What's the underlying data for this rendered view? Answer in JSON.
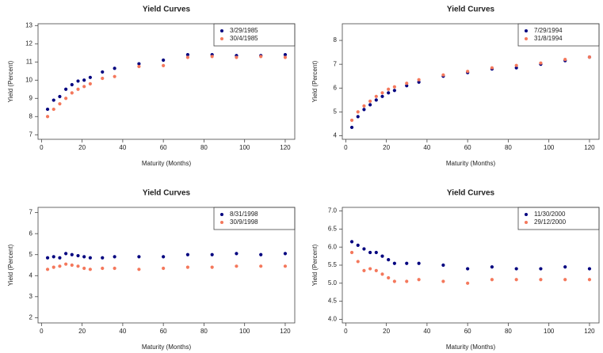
{
  "chart_data": [
    {
      "type": "scatter",
      "title": "Yield Curves",
      "x_label": "Maturity (Months)",
      "y_label": "Yield (Percent)",
      "x": [
        3,
        6,
        9,
        12,
        15,
        18,
        21,
        24,
        30,
        36,
        48,
        60,
        72,
        84,
        96,
        108,
        120
      ],
      "series": [
        {
          "name": "3/29/1985",
          "color": "#00007f",
          "values": [
            8.4,
            8.9,
            9.1,
            9.5,
            9.75,
            9.95,
            10.0,
            10.15,
            10.45,
            10.65,
            10.9,
            11.1,
            11.4,
            11.4,
            11.35,
            11.35,
            11.4
          ]
        },
        {
          "name": "30/4/1985",
          "color": "#f4785c",
          "values": [
            8.0,
            8.4,
            8.7,
            9.0,
            9.3,
            9.5,
            9.65,
            9.8,
            10.1,
            10.2,
            10.75,
            10.8,
            11.25,
            11.3,
            11.25,
            11.3,
            11.25
          ]
        }
      ],
      "xlim": [
        -1.7,
        124.7
      ],
      "xticks": [
        0,
        20,
        40,
        60,
        80,
        100,
        120
      ],
      "ylim": [
        6.75,
        13.1
      ],
      "yticks": [
        7,
        8,
        9,
        10,
        11,
        12,
        13
      ],
      "legend": "topright"
    },
    {
      "type": "scatter",
      "title": "Yield Curves",
      "x_label": "Maturity (Months)",
      "y_label": "Yield (Percent)",
      "x": [
        3,
        6,
        9,
        12,
        15,
        18,
        21,
        24,
        30,
        36,
        48,
        60,
        72,
        84,
        96,
        108,
        120
      ],
      "series": [
        {
          "name": "7/29/1994",
          "color": "#00007f",
          "values": [
            4.35,
            4.8,
            5.1,
            5.3,
            5.5,
            5.65,
            5.8,
            5.9,
            6.1,
            6.25,
            6.5,
            6.65,
            6.8,
            6.85,
            7.0,
            7.15,
            7.3
          ]
        },
        {
          "name": "31/8/1994",
          "color": "#f4785c",
          "values": [
            4.65,
            5.0,
            5.25,
            5.45,
            5.65,
            5.8,
            5.95,
            6.05,
            6.2,
            6.35,
            6.55,
            6.7,
            6.85,
            6.95,
            7.05,
            7.2,
            7.3
          ]
        }
      ],
      "xlim": [
        -1.7,
        124.7
      ],
      "xticks": [
        0,
        20,
        40,
        60,
        80,
        100,
        120
      ],
      "ylim": [
        3.85,
        8.7
      ],
      "yticks": [
        4,
        5,
        6,
        7,
        8
      ],
      "legend": "topright"
    },
    {
      "type": "scatter",
      "title": "Yield Curves",
      "x_label": "Maturity (Months)",
      "y_label": "Yield (Percent)",
      "x": [
        3,
        6,
        9,
        12,
        15,
        18,
        21,
        24,
        30,
        36,
        48,
        60,
        72,
        84,
        96,
        108,
        120
      ],
      "series": [
        {
          "name": "8/31/1998",
          "color": "#00007f",
          "values": [
            4.85,
            4.9,
            4.85,
            5.05,
            5.0,
            4.95,
            4.9,
            4.85,
            4.85,
            4.9,
            4.9,
            4.9,
            5.0,
            5.0,
            5.05,
            5.0,
            5.05
          ]
        },
        {
          "name": "30/9/1998",
          "color": "#f4785c",
          "values": [
            4.3,
            4.4,
            4.45,
            4.55,
            4.5,
            4.45,
            4.35,
            4.3,
            4.35,
            4.35,
            4.3,
            4.35,
            4.4,
            4.4,
            4.45,
            4.45,
            4.45
          ]
        }
      ],
      "xlim": [
        -1.7,
        124.7
      ],
      "xticks": [
        0,
        20,
        40,
        60,
        80,
        100,
        120
      ],
      "ylim": [
        1.75,
        7.25
      ],
      "yticks": [
        2,
        3,
        4,
        5,
        6,
        7
      ],
      "legend": "topright"
    },
    {
      "type": "scatter",
      "title": "Yield Curves",
      "x_label": "Maturity (Months)",
      "y_label": "Yield (Percent)",
      "x": [
        3,
        6,
        9,
        12,
        15,
        18,
        21,
        24,
        30,
        36,
        48,
        60,
        72,
        84,
        96,
        108,
        120
      ],
      "series": [
        {
          "name": "11/30/2000",
          "color": "#00007f",
          "values": [
            6.15,
            6.05,
            5.95,
            5.85,
            5.85,
            5.75,
            5.65,
            5.55,
            5.55,
            5.55,
            5.5,
            5.4,
            5.45,
            5.4,
            5.4,
            5.45,
            5.4
          ]
        },
        {
          "name": "29/12/2000",
          "color": "#f4785c",
          "values": [
            5.85,
            5.6,
            5.35,
            5.4,
            5.35,
            5.25,
            5.15,
            5.05,
            5.05,
            5.1,
            5.05,
            5.0,
            5.1,
            5.1,
            5.1,
            5.1,
            5.1
          ]
        }
      ],
      "xlim": [
        -1.7,
        124.7
      ],
      "xticks": [
        0,
        20,
        40,
        60,
        80,
        100,
        120
      ],
      "ylim": [
        3.9,
        7.1
      ],
      "yticks": [
        {
          "value": 4,
          "label": "4.0"
        },
        4.5,
        {
          "value": 5,
          "label": "5.0"
        },
        5.5,
        {
          "value": 6,
          "label": "6.0"
        },
        6.5,
        {
          "value": 7,
          "label": "7.0"
        }
      ],
      "legend": "topright"
    }
  ]
}
